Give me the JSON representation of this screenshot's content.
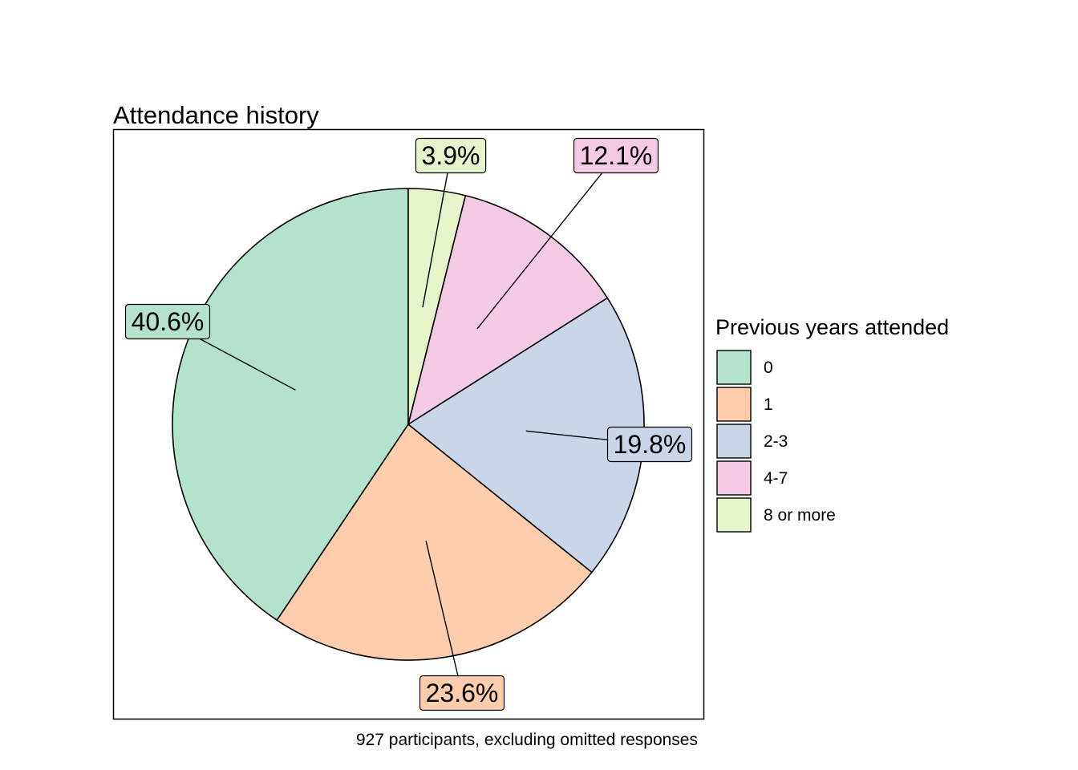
{
  "chart_data": {
    "type": "pie",
    "title": "Attendance history",
    "caption": "927 participants, excluding omitted responses",
    "legend_title": "Previous years attended",
    "legend_position": "right",
    "categories": [
      "0",
      "1",
      "2-3",
      "4-7",
      "8 or more"
    ],
    "values": [
      40.6,
      23.6,
      19.8,
      12.1,
      3.9
    ],
    "labels": [
      "40.6%",
      "23.6%",
      "19.8%",
      "12.1%",
      "3.9%"
    ],
    "colors": [
      "#b3e2cd",
      "#fdcdac",
      "#cbd5e8",
      "#f4cae4",
      "#e6f5c9"
    ],
    "direction": "counter-clockwise from top",
    "grid": false
  }
}
